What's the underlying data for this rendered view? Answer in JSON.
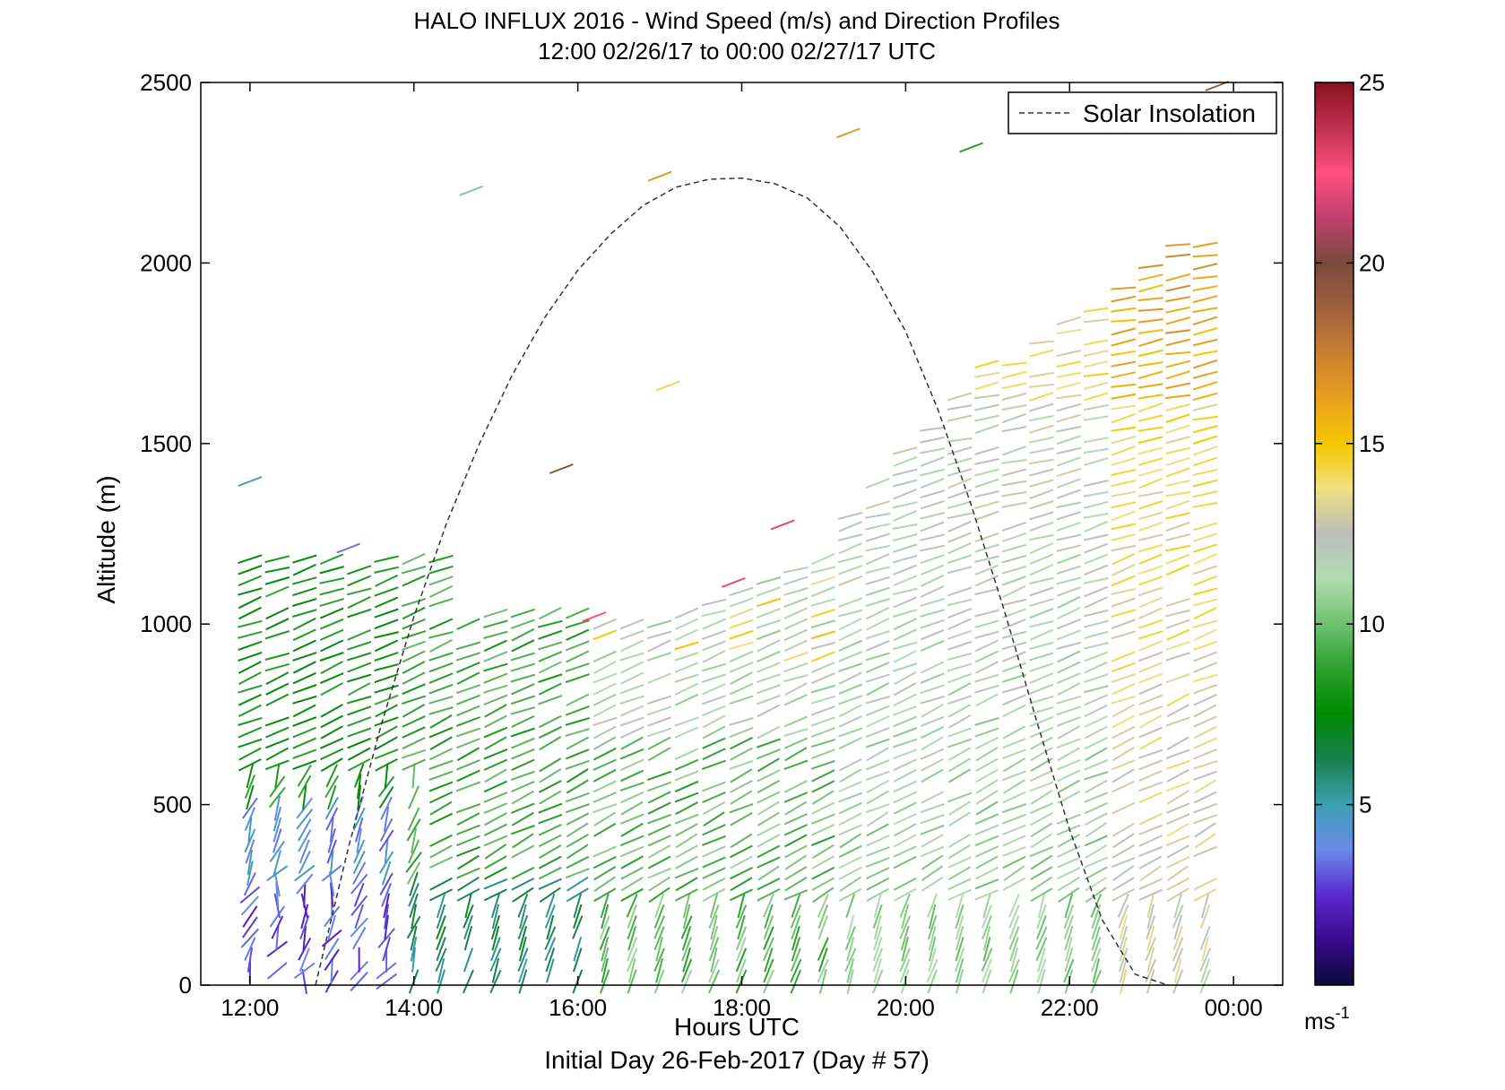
{
  "chart_data": {
    "type": "scatter",
    "title": "HALO INFLUX 2016 - Wind Speed (m/s) and Direction Profiles",
    "subtitle": "12:00 02/26/17 to 00:00 02/27/17  UTC",
    "xlabel": "Hours UTC",
    "ylabel": "Altitude (m)",
    "footer": "Initial Day 26-Feb-2017 (Day # 57)",
    "xlim": [
      11.4,
      24.6
    ],
    "ylim": [
      0,
      2500
    ],
    "x_ticks": [
      12,
      14,
      16,
      18,
      20,
      22,
      24
    ],
    "x_tick_labels": [
      "12:00",
      "14:00",
      "16:00",
      "18:00",
      "20:00",
      "22:00",
      "00:00"
    ],
    "y_ticks": [
      0,
      500,
      1000,
      1500,
      2000,
      2500
    ],
    "y_tick_labels": [
      "0",
      "500",
      "1000",
      "1500",
      "2000",
      "2500"
    ],
    "grid": false,
    "legend": {
      "position": "top-right",
      "entries": [
        "Solar Insolation"
      ]
    },
    "colorbar": {
      "range": [
        0,
        25
      ],
      "ticks": [
        5,
        10,
        15,
        20,
        25
      ],
      "tick_labels": [
        "5",
        "10",
        "15",
        "20",
        "25"
      ],
      "unit_label": "ms",
      "unit_exponent": "-1",
      "colors": [
        "#0a0a3c",
        "#3a0a8c",
        "#5a2ad0",
        "#6a8ae8",
        "#3ca0b4",
        "#1a8050",
        "#008a00",
        "#2ca02c",
        "#70c070",
        "#b0dcb0",
        "#bdbdbd",
        "#f0e080",
        "#f5c800",
        "#e8a020",
        "#c88030",
        "#a06040",
        "#7a4a3a",
        "#c04070",
        "#ff5080",
        "#c03050",
        "#8a1020"
      ]
    },
    "series": [
      {
        "name": "Solar Insolation",
        "style": "dashed",
        "x": [
          12.8,
          13.2,
          13.6,
          14.0,
          14.4,
          14.8,
          15.2,
          15.6,
          16.0,
          16.4,
          16.8,
          17.2,
          17.6,
          18.0,
          18.4,
          18.8,
          19.2,
          19.6,
          20.0,
          20.4,
          20.8,
          21.2,
          21.6,
          22.0,
          22.4,
          22.8,
          23.2
        ],
        "y": [
          0,
          380,
          720,
          1020,
          1280,
          1500,
          1690,
          1850,
          1980,
          2080,
          2160,
          2210,
          2232,
          2235,
          2220,
          2180,
          2100,
          1975,
          1810,
          1590,
          1330,
          1040,
          730,
          430,
          180,
          30,
          0
        ]
      }
    ],
    "wind_barbs": {
      "time_start": 12.0,
      "time_end": 23.9,
      "time_step": 0.333,
      "altitude_step": 30,
      "note": "dense field of wind-direction sticks colored by speed; data-derived field rendered procedurally"
    }
  }
}
